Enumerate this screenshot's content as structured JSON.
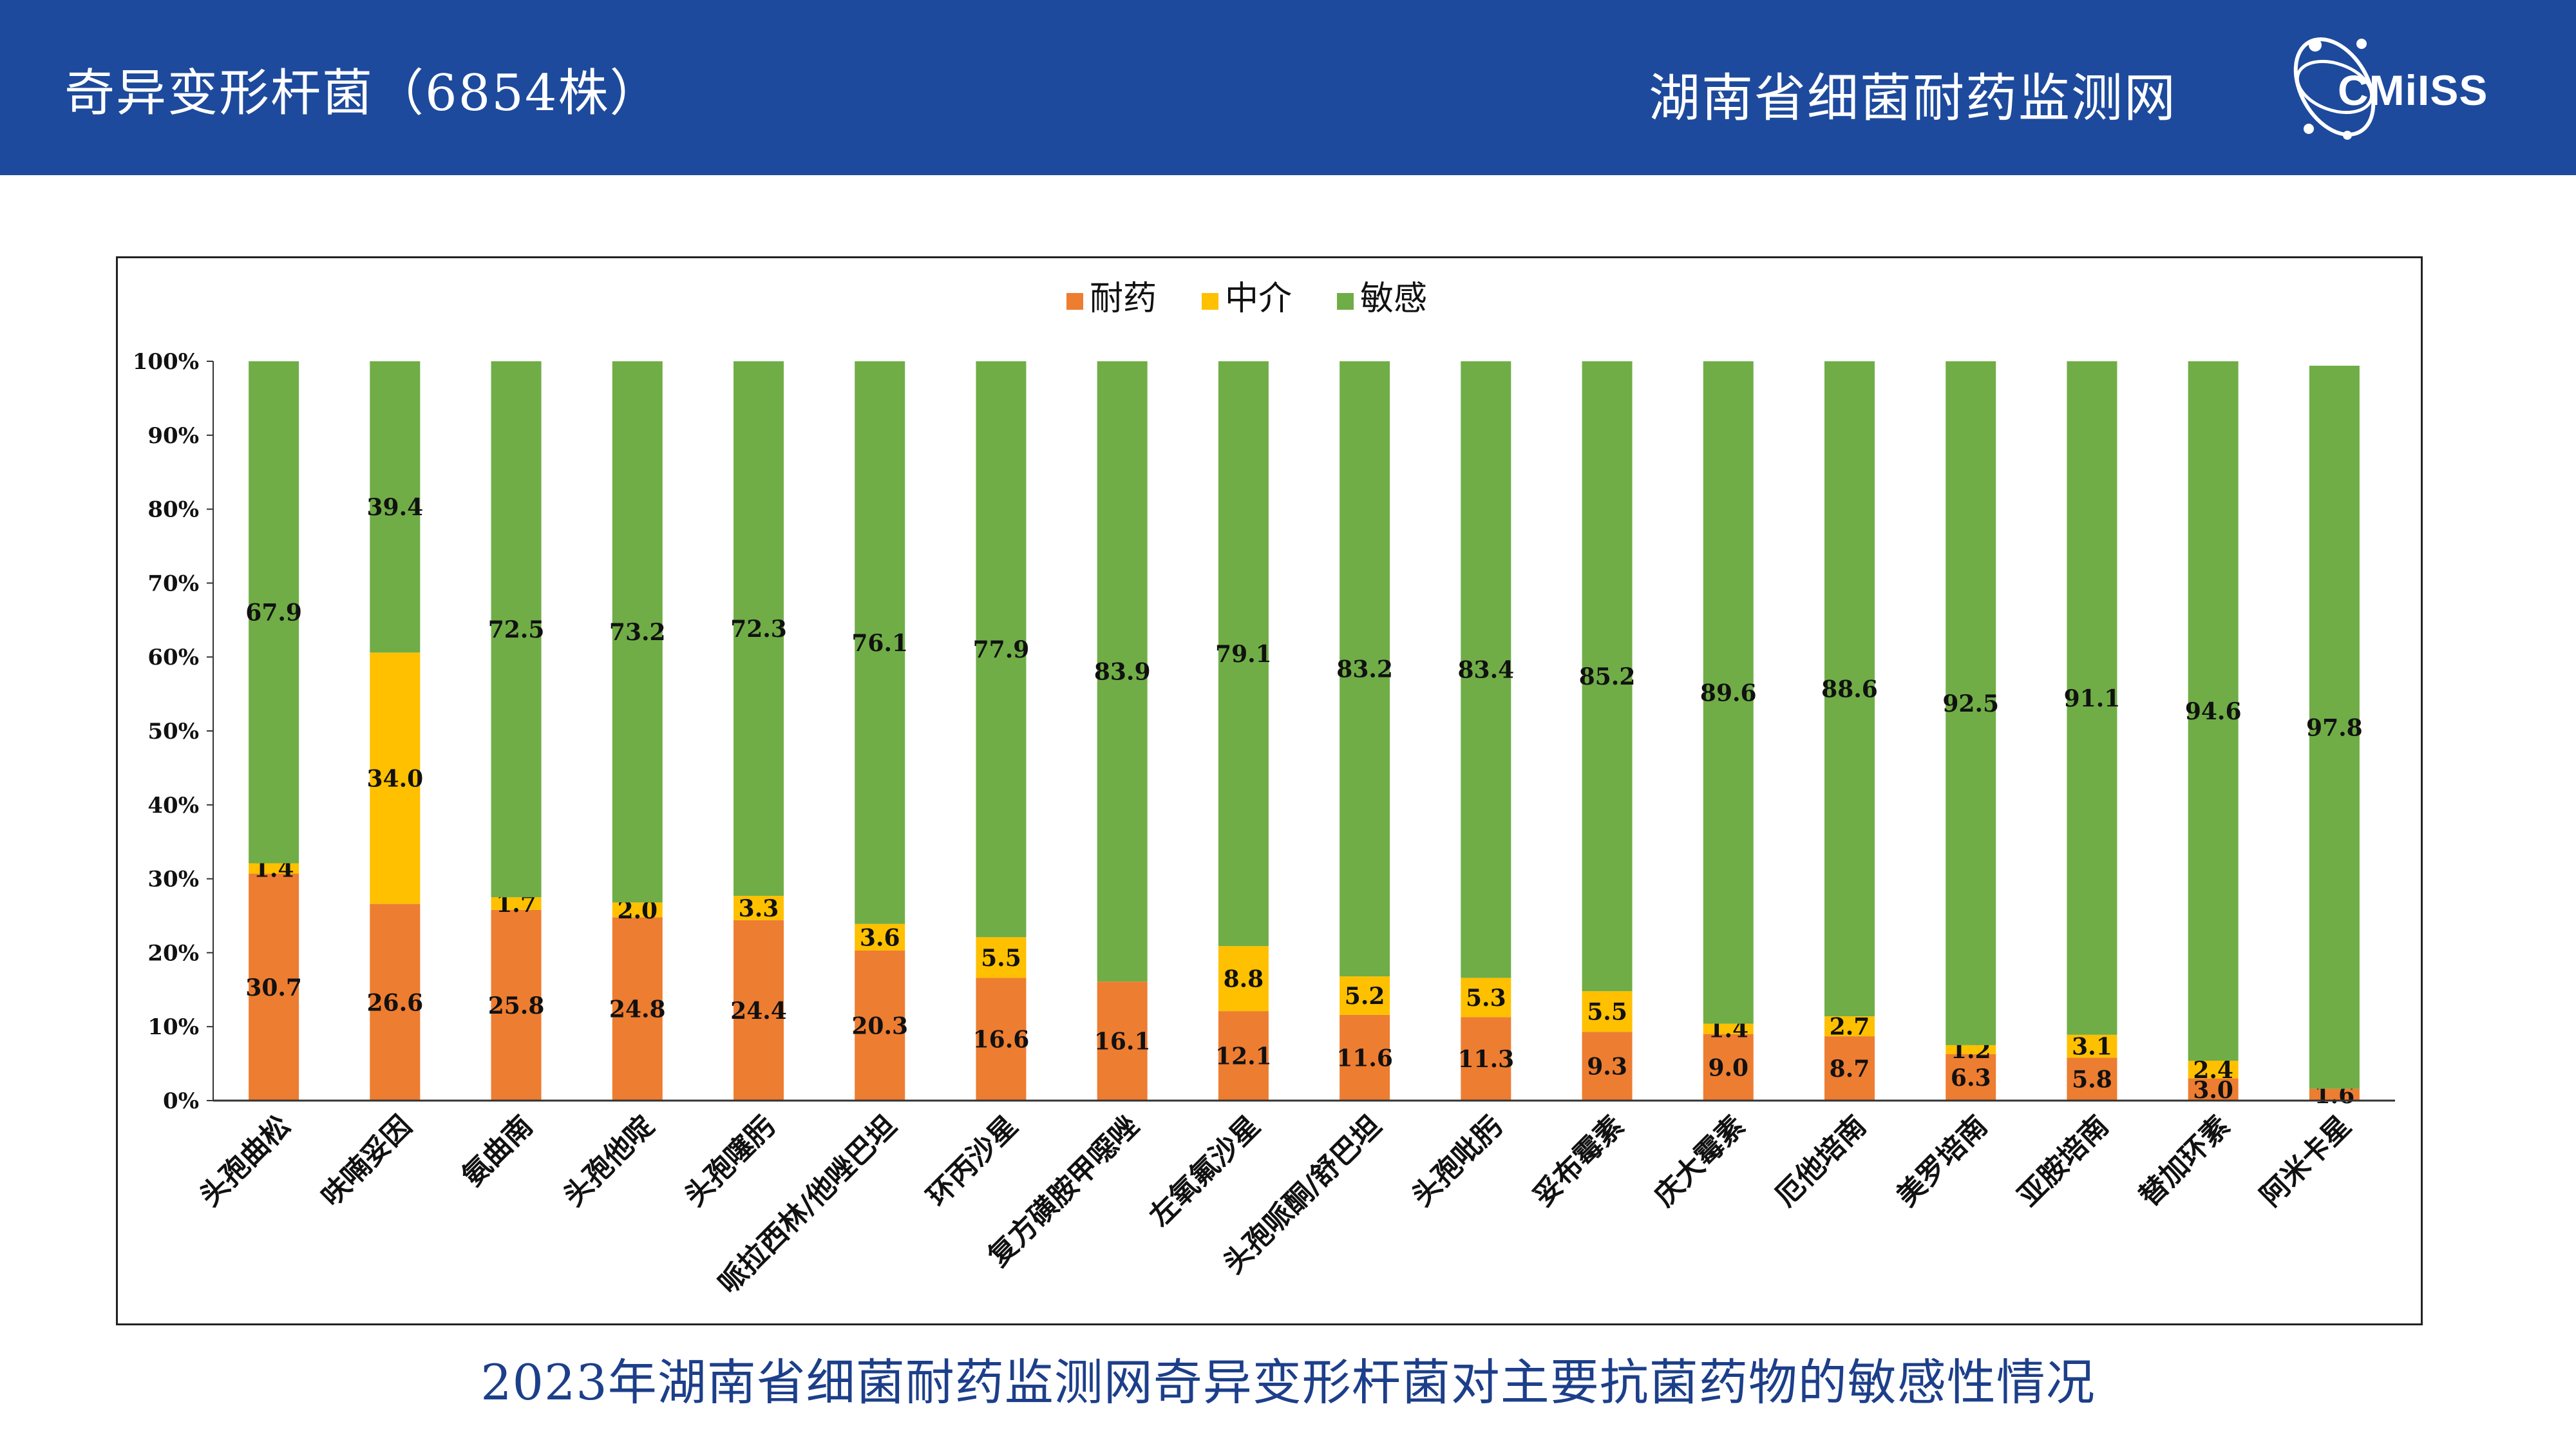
{
  "header": {
    "title": "奇异变形杆菌（6854株）",
    "org": "湖南省细菌耐药监测网",
    "logo_text": "CMiISS",
    "bg_color": "#1d4a9c"
  },
  "caption": "2023年湖南省细菌耐药监测网奇异变形杆菌对主要抗菌药物的敏感性情况",
  "chart_data": {
    "type": "bar",
    "stacked": "percent",
    "categories": [
      "头孢曲松",
      "呋喃妥因",
      "氨曲南",
      "头孢他啶",
      "头孢噻肟",
      "哌拉西林/他唑巴坦",
      "环丙沙星",
      "复方磺胺甲噁唑",
      "左氧氟沙星",
      "头孢哌酮/舒巴坦",
      "头孢吡肟",
      "妥布霉素",
      "庆大霉素",
      "厄他培南",
      "美罗培南",
      "亚胺培南",
      "替加环素",
      "阿米卡星"
    ],
    "series": [
      {
        "name": "耐药",
        "color": "#ed7d31",
        "values": [
          30.7,
          26.6,
          25.8,
          24.8,
          24.4,
          20.3,
          16.6,
          16.1,
          12.1,
          11.6,
          11.3,
          9.3,
          9.0,
          8.7,
          6.3,
          5.8,
          3.0,
          1.6
        ]
      },
      {
        "name": "中介",
        "color": "#ffc000",
        "values": [
          1.4,
          34.0,
          1.7,
          2.0,
          3.3,
          3.6,
          5.5,
          null,
          8.8,
          5.2,
          5.3,
          5.5,
          1.4,
          2.7,
          1.2,
          3.1,
          2.4,
          null
        ]
      },
      {
        "name": "敏感",
        "color": "#70ad47",
        "values": [
          67.9,
          39.4,
          72.5,
          73.2,
          72.3,
          76.1,
          77.9,
          83.9,
          79.1,
          83.2,
          83.4,
          85.2,
          89.6,
          88.6,
          92.5,
          91.1,
          94.6,
          97.8
        ]
      }
    ],
    "y_ticks": [
      "0%",
      "10%",
      "20%",
      "30%",
      "40%",
      "50%",
      "60%",
      "70%",
      "80%",
      "90%",
      "100%"
    ],
    "ylim": [
      0,
      100
    ],
    "legend_position": "top-center",
    "grid": false
  }
}
